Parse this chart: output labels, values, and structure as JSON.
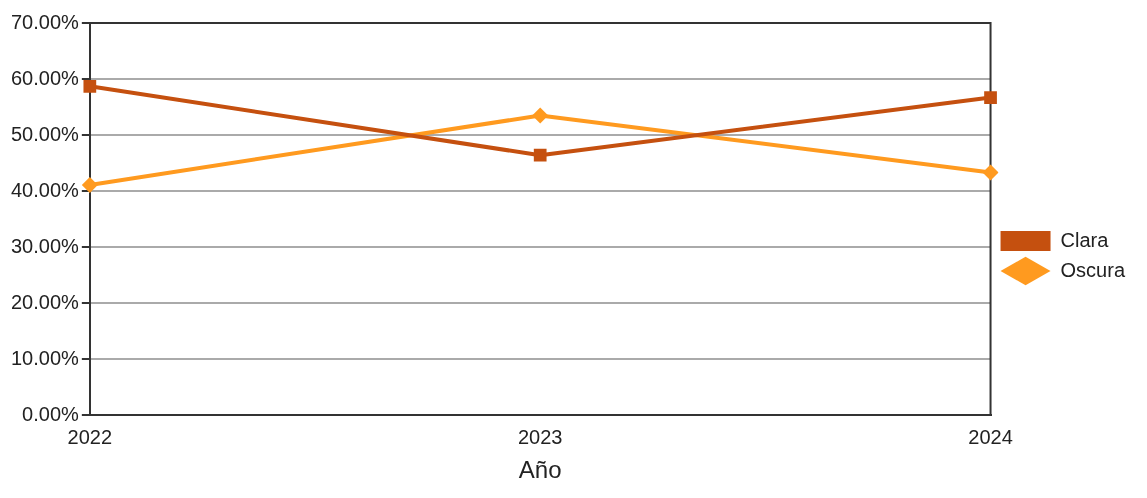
{
  "chart_data": {
    "type": "line",
    "xlabel": "Año",
    "categories": [
      "2022",
      "2023",
      "2024"
    ],
    "series": [
      {
        "name": "Clara",
        "color": "#c5500f",
        "marker": "square",
        "values": [
          58.7,
          46.4,
          56.7
        ]
      },
      {
        "name": "Oscura",
        "color": "#ff9a1f",
        "marker": "diamond",
        "values": [
          41.1,
          53.5,
          43.3
        ]
      }
    ],
    "ylim": [
      0,
      70
    ],
    "yticks": [
      {
        "value": 0,
        "label": "0.00%"
      },
      {
        "value": 10,
        "label": "10.00%"
      },
      {
        "value": 20,
        "label": "20.00%"
      },
      {
        "value": 30,
        "label": "30.00%"
      },
      {
        "value": 40,
        "label": "40.00%"
      },
      {
        "value": 50,
        "label": "50.00%"
      },
      {
        "value": 60,
        "label": "60.00%"
      },
      {
        "value": 70,
        "label": "70.00%"
      }
    ],
    "grid": "y",
    "legend": "right",
    "line_style": "solid"
  }
}
